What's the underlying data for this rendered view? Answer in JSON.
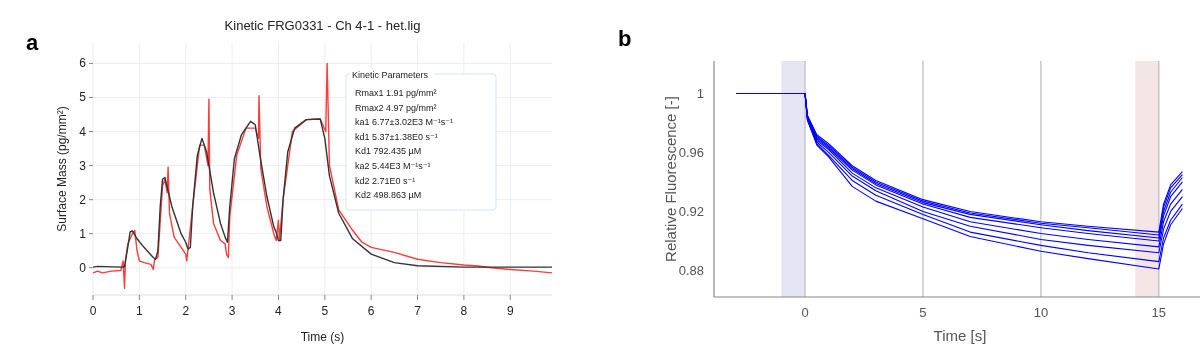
{
  "chart_data": [
    {
      "type": "line",
      "title": "Kinetic FRG0331 - Ch 4-1 - het.lig",
      "xlabel": "Time (s)",
      "ylabel": "Surface Mass (pg/mm²)",
      "annotations": [
        "a",
        "Kinetic Parameters",
        "Rmax1 1.91 pg/mm²",
        "Rmax2 4.97 pg/mm²",
        "ka1 6.77±3.02E3 M⁻¹s⁻¹",
        "kd1 5.37±1.38E0 s⁻¹",
        "Kd1 792.435 µM",
        "ka2 5.44E3 M⁻¹s⁻¹",
        "kd2 2.71E0 s⁻¹",
        "Kd2 498.863 µM"
      ],
      "xlim": [
        0,
        9.9
      ],
      "xticks": [
        0,
        1,
        2,
        3,
        4,
        5,
        6,
        7,
        8,
        9
      ],
      "ylim": [
        -0.8,
        6.6
      ],
      "yticks": [
        0,
        1,
        2,
        3,
        4,
        5,
        6
      ],
      "grid": true,
      "series": [
        {
          "color": "#ff3b3b",
          "x": [
            0,
            0.1,
            0.2,
            0.4,
            0.6,
            0.65,
            0.68,
            0.7,
            0.75,
            0.85,
            0.9,
            0.95,
            1.0,
            1.1,
            1.25,
            1.3,
            1.33,
            1.4,
            1.5,
            1.55,
            1.6,
            1.62,
            1.65,
            1.75,
            1.9,
            2.0,
            2.02,
            2.05,
            2.15,
            2.3,
            2.4,
            2.48,
            2.5,
            2.52,
            2.6,
            2.75,
            2.85,
            2.88,
            2.92,
            2.95,
            3.1,
            3.3,
            3.5,
            3.57,
            3.58,
            3.62,
            3.75,
            3.9,
            3.95,
            4.0,
            4.02,
            4.1,
            4.3,
            4.6,
            4.9,
            5.02,
            5.05,
            5.1,
            5.3,
            5.6,
            5.8,
            6.0,
            6.5,
            7.0,
            7.5,
            8.0,
            8.3,
            8.6,
            9.0,
            9.5,
            9.9
          ],
          "values": [
            -0.15,
            -0.1,
            -0.15,
            -0.1,
            -0.08,
            0.2,
            -0.6,
            0.2,
            0.7,
            1.0,
            1.1,
            0.5,
            0.2,
            0.15,
            0.1,
            -0.05,
            0.25,
            0.3,
            2.4,
            2.6,
            2.2,
            2.95,
            1.6,
            0.9,
            0.6,
            0.4,
            0.2,
            0.55,
            1.8,
            3.6,
            3.6,
            3.0,
            4.95,
            2.3,
            1.3,
            0.8,
            0.7,
            0.4,
            0.3,
            1.5,
            3.3,
            4.1,
            4.1,
            3.8,
            5.05,
            2.9,
            1.8,
            1.0,
            0.8,
            1.4,
            0.8,
            2.0,
            4.0,
            4.35,
            4.37,
            4.0,
            6.0,
            3.0,
            1.7,
            1.1,
            0.75,
            0.6,
            0.45,
            0.25,
            0.15,
            0.08,
            0.05,
            0,
            -0.05,
            -0.1,
            -0.15
          ]
        },
        {
          "color": "#333333",
          "x": [
            0,
            0.1,
            0.6,
            0.68,
            0.75,
            0.8,
            0.85,
            0.95,
            1.1,
            1.3,
            1.35,
            1.4,
            1.45,
            1.5,
            1.55,
            1.7,
            1.9,
            2.0,
            2.05,
            2.1,
            2.15,
            2.25,
            2.35,
            2.45,
            2.6,
            2.75,
            2.85,
            2.9,
            2.95,
            3.05,
            3.2,
            3.4,
            3.5,
            3.6,
            3.75,
            3.9,
            3.95,
            4.0,
            4.05,
            4.1,
            4.2,
            4.35,
            4.6,
            4.9,
            5.0,
            5.1,
            5.3,
            5.6,
            6.0,
            6.5,
            7.0,
            8.0,
            9.9
          ],
          "values": [
            0.02,
            0.04,
            0.02,
            0.03,
            0.6,
            1.05,
            1.08,
            0.85,
            0.6,
            0.3,
            0.25,
            0.5,
            1.8,
            2.6,
            2.65,
            1.8,
            1.0,
            0.75,
            0.55,
            0.6,
            1.8,
            3.3,
            3.8,
            3.4,
            2.2,
            1.3,
            0.9,
            0.75,
            1.8,
            3.2,
            3.9,
            4.3,
            4.2,
            3.3,
            2.1,
            1.2,
            1.05,
            0.8,
            0.8,
            2.0,
            3.4,
            4.1,
            4.35,
            4.37,
            3.8,
            2.7,
            1.6,
            0.85,
            0.4,
            0.15,
            0.06,
            0.02,
            0.02
          ]
        }
      ]
    },
    {
      "type": "line",
      "xlabel": "Time [s]",
      "ylabel": "Relative Fluorescence [-]",
      "annotations": [
        "b"
      ],
      "xlim": [
        -3.86,
        17
      ],
      "xticks": [
        0,
        5,
        10,
        15
      ],
      "ylim": [
        0.862,
        1.022
      ],
      "yticks": [
        0.88,
        0.92,
        0.96,
        1
      ],
      "grid": "x",
      "bands": [
        {
          "axis": "x",
          "from": -1,
          "to": 0,
          "color": "#e4e4f2"
        },
        {
          "axis": "x",
          "from": 14,
          "to": 15,
          "color": "#f4e6e6"
        }
      ],
      "x": [
        -2.9,
        0,
        0.1,
        0.5,
        1,
        2,
        3,
        5,
        7,
        10,
        12,
        15,
        15.2,
        15.5,
        16
      ],
      "series": [
        {
          "color": "#0000ff",
          "values": [
            1,
            1,
            0.985,
            0.972,
            0.966,
            0.951,
            0.941,
            0.928,
            0.92,
            0.913,
            0.91,
            0.906,
            0.925,
            0.938,
            0.947
          ]
        },
        {
          "color": "#0000ff",
          "values": [
            1,
            1,
            0.985,
            0.971,
            0.965,
            0.95,
            0.94,
            0.927,
            0.919,
            0.912,
            0.909,
            0.904,
            0.923,
            0.936,
            0.945
          ]
        },
        {
          "color": "#0000ff",
          "values": [
            1,
            1,
            0.984,
            0.97,
            0.964,
            0.949,
            0.939,
            0.926,
            0.918,
            0.911,
            0.907,
            0.902,
            0.92,
            0.933,
            0.943
          ]
        },
        {
          "color": "#0000ff",
          "values": [
            1,
            1,
            0.984,
            0.969,
            0.963,
            0.948,
            0.938,
            0.925,
            0.916,
            0.909,
            0.905,
            0.9,
            0.917,
            0.93,
            0.94
          ]
        },
        {
          "color": "#0000ff",
          "values": [
            1,
            1,
            0.983,
            0.968,
            0.962,
            0.946,
            0.936,
            0.923,
            0.913,
            0.905,
            0.901,
            0.896,
            0.913,
            0.925,
            0.935
          ]
        },
        {
          "color": "#0000ff",
          "values": [
            1,
            1,
            0.983,
            0.967,
            0.96,
            0.944,
            0.934,
            0.92,
            0.91,
            0.901,
            0.897,
            0.892,
            0.908,
            0.92,
            0.93
          ]
        },
        {
          "color": "#0000ff",
          "values": [
            1,
            1,
            0.982,
            0.966,
            0.958,
            0.941,
            0.931,
            0.918,
            0.906,
            0.897,
            0.892,
            0.886,
            0.902,
            0.914,
            0.925
          ]
        },
        {
          "color": "#0000ff",
          "values": [
            1,
            1,
            0.982,
            0.965,
            0.957,
            0.937,
            0.927,
            0.915,
            0.903,
            0.893,
            0.888,
            0.881,
            0.898,
            0.911,
            0.922
          ]
        }
      ]
    }
  ]
}
